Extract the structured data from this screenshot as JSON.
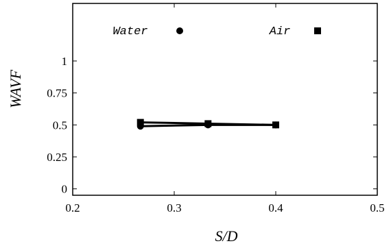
{
  "chart_data": {
    "type": "line",
    "title": "",
    "xlabel": "S/D",
    "ylabel": "WAVF",
    "xlim": [
      0.2,
      0.5
    ],
    "ylim": [
      -0.05,
      1.45
    ],
    "x_ticks": [
      "0.2",
      "0.3",
      "0.4",
      "0.5"
    ],
    "y_ticks": [
      "0",
      "0.25",
      "0.5",
      "0.75",
      "1"
    ],
    "grid": false,
    "legend_placement": "top",
    "series": [
      {
        "name": "Water",
        "marker": "circle",
        "x": [
          0.2667,
          0.3333,
          0.4
        ],
        "y": [
          0.49,
          0.5,
          0.5
        ]
      },
      {
        "name": "Air",
        "marker": "square",
        "x": [
          0.2667,
          0.3333,
          0.4
        ],
        "y": [
          0.52,
          0.51,
          0.5
        ]
      }
    ]
  }
}
